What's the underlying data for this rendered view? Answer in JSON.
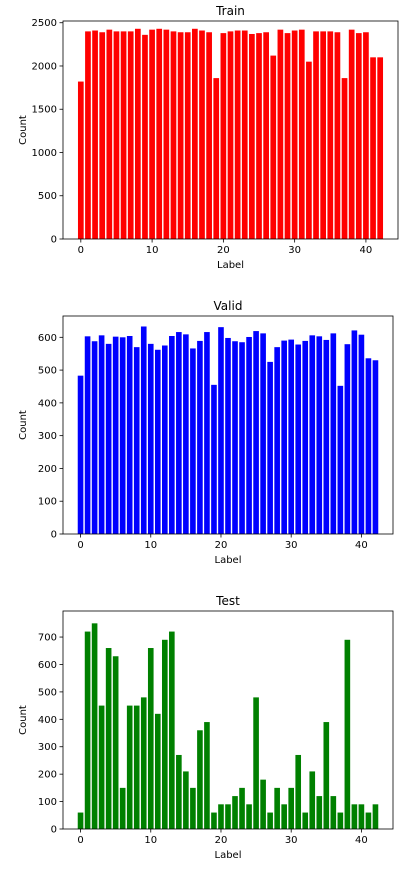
{
  "chart_data": [
    {
      "type": "bar",
      "title": "Train",
      "xlabel": "Label",
      "ylabel": "Count",
      "color": "#ff0000",
      "xlim": [
        -2.5,
        44.5
      ],
      "ylim": [
        0,
        2520
      ],
      "xticks": [
        0,
        10,
        20,
        30,
        40
      ],
      "yticks": [
        0,
        500,
        1000,
        1500,
        2000,
        2500
      ],
      "grid": false,
      "categories": [
        0,
        1,
        2,
        3,
        4,
        5,
        6,
        7,
        8,
        9,
        10,
        11,
        12,
        13,
        14,
        15,
        16,
        17,
        18,
        19,
        20,
        21,
        22,
        23,
        24,
        25,
        26,
        27,
        28,
        29,
        30,
        31,
        32,
        33,
        34,
        35,
        36,
        37,
        38,
        39,
        40,
        41,
        42
      ],
      "values": [
        1820,
        2400,
        2410,
        2390,
        2420,
        2400,
        2400,
        2400,
        2430,
        2360,
        2420,
        2430,
        2420,
        2400,
        2390,
        2390,
        2430,
        2410,
        2390,
        1860,
        2380,
        2400,
        2410,
        2410,
        2370,
        2380,
        2390,
        2120,
        2420,
        2380,
        2410,
        2420,
        2050,
        2400,
        2400,
        2400,
        2390,
        1860,
        2420,
        2380,
        2390,
        2100,
        2100
      ]
    },
    {
      "type": "bar",
      "title": "Valid",
      "xlabel": "Label",
      "ylabel": "Count",
      "color": "#0000ff",
      "xlim": [
        -2.5,
        44.5
      ],
      "ylim": [
        0,
        665
      ],
      "xticks": [
        0,
        10,
        20,
        30,
        40
      ],
      "yticks": [
        0,
        100,
        200,
        300,
        400,
        500,
        600
      ],
      "grid": false,
      "categories": [
        0,
        1,
        2,
        3,
        4,
        5,
        6,
        7,
        8,
        9,
        10,
        11,
        12,
        13,
        14,
        15,
        16,
        17,
        18,
        19,
        20,
        21,
        22,
        23,
        24,
        25,
        26,
        27,
        28,
        29,
        30,
        31,
        32,
        33,
        34,
        35,
        36,
        37,
        38,
        39,
        40,
        41,
        42
      ],
      "values": [
        483,
        603,
        588,
        606,
        580,
        602,
        600,
        604,
        570,
        633,
        580,
        562,
        575,
        604,
        616,
        609,
        566,
        589,
        616,
        455,
        631,
        598,
        588,
        585,
        601,
        619,
        612,
        525,
        570,
        590,
        593,
        578,
        589,
        606,
        603,
        592,
        612,
        452,
        579,
        621,
        608,
        536,
        530
      ]
    },
    {
      "type": "bar",
      "title": "Test",
      "xlabel": "Label",
      "ylabel": "Count",
      "color": "#008000",
      "xlim": [
        -2.5,
        44.5
      ],
      "ylim": [
        0,
        795
      ],
      "xticks": [
        0,
        10,
        20,
        30,
        40
      ],
      "yticks": [
        0,
        100,
        200,
        300,
        400,
        500,
        600,
        700
      ],
      "grid": false,
      "categories": [
        0,
        1,
        2,
        3,
        4,
        5,
        6,
        7,
        8,
        9,
        10,
        11,
        12,
        13,
        14,
        15,
        16,
        17,
        18,
        19,
        20,
        21,
        22,
        23,
        24,
        25,
        26,
        27,
        28,
        29,
        30,
        31,
        32,
        33,
        34,
        35,
        36,
        37,
        38,
        39,
        40,
        41,
        42
      ],
      "values": [
        60,
        720,
        750,
        450,
        660,
        630,
        150,
        450,
        450,
        480,
        660,
        420,
        690,
        720,
        270,
        210,
        150,
        360,
        390,
        60,
        90,
        90,
        120,
        150,
        90,
        480,
        180,
        60,
        150,
        90,
        150,
        270,
        60,
        210,
        120,
        390,
        120,
        60,
        690,
        90,
        90,
        60,
        90
      ]
    }
  ]
}
